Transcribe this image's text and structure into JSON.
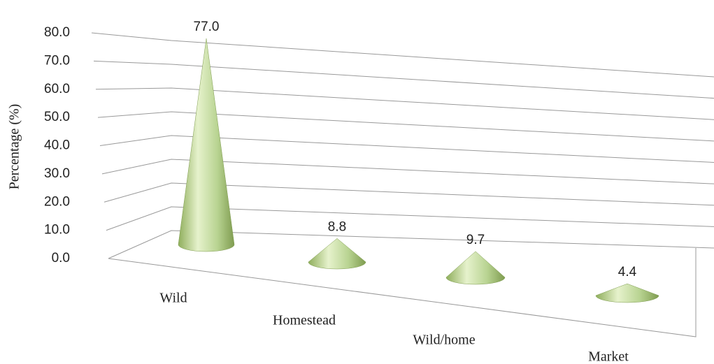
{
  "chart_data": {
    "type": "cone3d",
    "y_axis_label": "Percentage (%)",
    "categories": [
      "Wild",
      "Homestead",
      "Wild/home",
      "Market"
    ],
    "values": [
      77.0,
      8.8,
      9.7,
      4.4
    ],
    "value_labels": [
      "77.0",
      "8.8",
      "9.7",
      "4.4"
    ],
    "color": "#b5d08a",
    "ylim": [
      0,
      80
    ],
    "yticks": [
      {
        "value": 0,
        "label": "0.0"
      },
      {
        "value": 10,
        "label": "10.0"
      },
      {
        "value": 20,
        "label": "20.0"
      },
      {
        "value": 30,
        "label": "30.0"
      },
      {
        "value": 40,
        "label": "40.0"
      },
      {
        "value": 50,
        "label": "50.0"
      },
      {
        "value": 60,
        "label": "60.0"
      },
      {
        "value": 70,
        "label": "70.0"
      },
      {
        "value": 80,
        "label": "80.0"
      }
    ],
    "grid": true
  }
}
